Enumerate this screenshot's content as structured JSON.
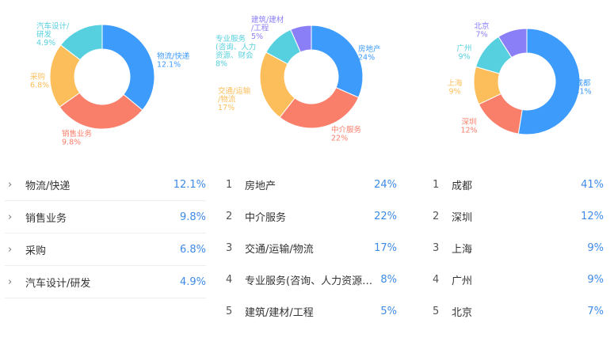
{
  "chart_data": [
    {
      "type": "pie",
      "categories": [
        "物流/快递",
        "销售业务",
        "采购",
        "汽车设计/研发"
      ],
      "values": [
        12.1,
        9.8,
        6.8,
        4.9
      ],
      "value_labels": [
        "12.1%",
        "9.8%",
        "6.8%",
        "4.9%"
      ],
      "slice_labels": [
        [
          "物流/快递",
          "12.1%"
        ],
        [
          "销售业务",
          "9.8%"
        ],
        [
          "采购",
          "6.8%"
        ],
        [
          "汽车设计/",
          "研发",
          "4.9%"
        ]
      ],
      "colors": [
        "#3d9bfc",
        "#f97f6b",
        "#fcbe5b",
        "#56d0de"
      ]
    },
    {
      "type": "pie",
      "categories": [
        "房地产",
        "中介服务",
        "交通/运输/物流",
        "专业服务(咨询、人力资源、财会)",
        "建筑/建材/工程"
      ],
      "values": [
        24,
        22,
        17,
        8,
        5
      ],
      "value_labels": [
        "24%",
        "22%",
        "17%",
        "8%",
        "5%"
      ],
      "slice_labels": [
        [
          "房地产",
          "24%"
        ],
        [
          "中介服务",
          "22%"
        ],
        [
          "交通/运输",
          "/物流",
          "17%"
        ],
        [
          "专业服务",
          "(咨询、人力",
          "资源、财会",
          "8%"
        ],
        [
          "建筑/建材",
          "/工程",
          "5%"
        ]
      ],
      "colors": [
        "#3d9bfc",
        "#f97f6b",
        "#fcbe5b",
        "#56d0de",
        "#8b7ff7"
      ]
    },
    {
      "type": "pie",
      "categories": [
        "成都",
        "深圳",
        "上海",
        "广州",
        "北京"
      ],
      "values": [
        41,
        12,
        9,
        9,
        7
      ],
      "value_labels": [
        "41%",
        "12%",
        "9%",
        "9%",
        "7%"
      ],
      "slice_labels": [
        [
          "成都",
          "41%"
        ],
        [
          "深圳",
          "12%"
        ],
        [
          "上海",
          "9%"
        ],
        [
          "广州",
          "9%"
        ],
        [
          "北京",
          "7%"
        ]
      ],
      "colors": [
        "#3d9bfc",
        "#f97f6b",
        "#fcbe5b",
        "#56d0de",
        "#8b7ff7"
      ]
    }
  ],
  "lists": [
    {
      "marker": "chevron",
      "rows": [
        {
          "name": "物流/快递",
          "pct": "12.1%"
        },
        {
          "name": "销售业务",
          "pct": "9.8%"
        },
        {
          "name": "采购",
          "pct": "6.8%"
        },
        {
          "name": "汽车设计/研发",
          "pct": "4.9%"
        }
      ]
    },
    {
      "marker": "rank",
      "rows": [
        {
          "rank": "1",
          "name": "房地产",
          "pct": "24%"
        },
        {
          "rank": "2",
          "name": "中介服务",
          "pct": "22%"
        },
        {
          "rank": "3",
          "name": "交通/运输/物流",
          "pct": "17%"
        },
        {
          "rank": "4",
          "name": "专业服务(咨询、人力资源、财会)",
          "pct": "8%"
        },
        {
          "rank": "5",
          "name": "建筑/建材/工程",
          "pct": "5%"
        }
      ]
    },
    {
      "marker": "rank",
      "rows": [
        {
          "rank": "1",
          "name": "成都",
          "pct": "41%"
        },
        {
          "rank": "2",
          "name": "深圳",
          "pct": "12%"
        },
        {
          "rank": "3",
          "name": "上海",
          "pct": "9%"
        },
        {
          "rank": "4",
          "name": "广州",
          "pct": "9%"
        },
        {
          "rank": "5",
          "name": "北京",
          "pct": "7%"
        }
      ]
    }
  ],
  "icons": {
    "chevron": "chevron-right-icon"
  }
}
